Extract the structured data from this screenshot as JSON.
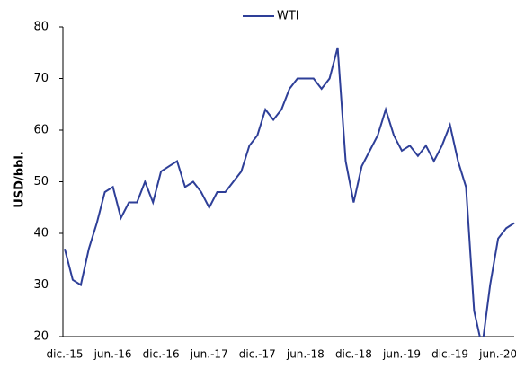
{
  "chart_data": {
    "type": "line",
    "y_label": "USD/bbl.",
    "categories": [
      "dic.-15",
      null,
      null,
      null,
      null,
      null,
      "jun.-16",
      null,
      null,
      null,
      null,
      null,
      "dic.-16",
      null,
      null,
      null,
      null,
      null,
      "jun.-17",
      null,
      null,
      null,
      null,
      null,
      "dic.-17",
      null,
      null,
      null,
      null,
      null,
      "jun.-18",
      null,
      null,
      null,
      null,
      null,
      "dic.-18",
      null,
      null,
      null,
      null,
      null,
      "jun.-19",
      null,
      null,
      null,
      null,
      null,
      "dic.-19",
      null,
      null,
      null,
      null,
      null,
      "jun.-20",
      null,
      null
    ],
    "series": [
      {
        "name": "WTI",
        "color": "#2e3f98",
        "values": [
          37,
          31,
          30,
          37,
          42,
          48,
          49,
          43,
          46,
          46,
          50,
          46,
          52,
          53,
          54,
          49,
          50,
          48,
          45,
          48,
          48,
          50,
          52,
          57,
          59,
          64,
          62,
          64,
          68,
          70,
          70,
          70,
          68,
          70,
          76,
          54,
          46,
          53,
          56,
          59,
          64,
          59,
          56,
          57,
          55,
          57,
          54,
          57,
          61,
          54,
          49,
          25,
          18,
          30,
          39,
          41,
          42
        ]
      }
    ],
    "ylim": [
      20,
      80
    ],
    "yticks": [
      20,
      30,
      40,
      50,
      60,
      70,
      80
    ],
    "legend": "top"
  }
}
